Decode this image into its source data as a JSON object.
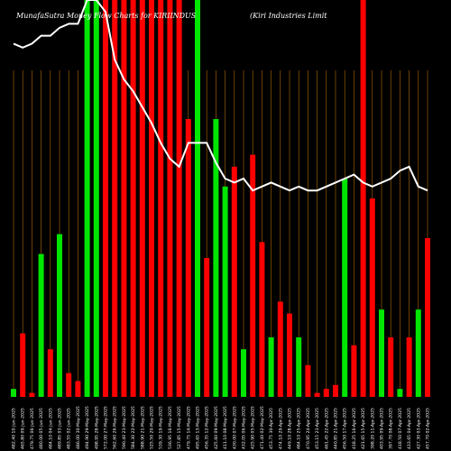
{
  "chart_data": {
    "type": "bar",
    "title_left": "MunafaSutra  Money  Flow  Charts  for  KIRIINDUS",
    "title_right": "(Kiri   Industries Limit",
    "colors": {
      "up": "#00e600",
      "down": "#ff0000",
      "line": "#ffffff",
      "grid": "#b36b00",
      "background": "#000000"
    },
    "ylim_bars": [
      0,
      100
    ],
    "ylim_line": [
      0,
      100
    ],
    "categories": [
      "482.40 10-Jun-2025",
      "465.80 09-Jun-2025",
      "479.75 06-Jun-2025",
      "480.00 05-Jun-2025",
      "484.10 04-Jun-2025",
      "489.85 03-Jun-2025",
      "483.55 02-Jun-2025",
      "486.00 30-May-2025",
      "494.90 29-May-2025",
      "498.95 28-May-2025",
      "572.00 27-May-2025",
      "562.60 26-May-2025",
      "590.40 23-May-2025",
      "584.30 22-May-2025",
      "588.90 21-May-2025",
      "525.50 20-May-2025",
      "539.30 19-May-2025",
      "536.95 16-May-2025",
      "527.85 15-May-2025",
      "479.75 14-May-2025",
      "495.65 13-May-2025",
      "456.35 12-May-2025",
      "425.60 09-May-2025",
      "411.10 08-May-2025",
      "430.00 07-May-2025",
      "432.05 06-May-2025",
      "425.90 05-May-2025",
      "471.40 02-May-2025",
      "453.75 30-Apr-2025",
      "474.10 29-Apr-2025",
      "449.10 28-Apr-2025",
      "484.10 25-Apr-2025",
      "470.95 24-Apr-2025",
      "453.15 23-Apr-2025",
      "461.45 22-Apr-2025",
      "440.85 21-Apr-2025",
      "456.50 17-Apr-2025",
      "418.25 16-Apr-2025",
      "421.65 15-Apr-2025",
      "398.20 11-Apr-2025",
      "403.95 09-Apr-2025",
      "397.70 08-Apr-2025",
      "418.50 07-Apr-2025",
      "433.65 04-Apr-2025",
      "427.30 03-Apr-2025",
      "457.70 02-Apr-2025"
    ],
    "bar_colors": [
      "up",
      "down",
      "down",
      "up",
      "down",
      "up",
      "down",
      "down",
      "up",
      "up",
      "down",
      "down",
      "down",
      "down",
      "down",
      "down",
      "down",
      "down",
      "down",
      "down",
      "up",
      "down",
      "up",
      "up",
      "down",
      "up",
      "down",
      "down",
      "up",
      "down",
      "down",
      "up",
      "down",
      "down",
      "down",
      "down",
      "up",
      "down",
      "down",
      "down",
      "up",
      "down",
      "up",
      "down",
      "up",
      "down"
    ],
    "bar_values": [
      2,
      16,
      1,
      36,
      12,
      41,
      6,
      4,
      100,
      100,
      100,
      100,
      100,
      100,
      100,
      100,
      100,
      100,
      100,
      70,
      100,
      35,
      70,
      53,
      58,
      12,
      61,
      39,
      15,
      24,
      21,
      15,
      8,
      1,
      2,
      3,
      55,
      13,
      100,
      50,
      22,
      15,
      2,
      15,
      22,
      40
    ],
    "line_values": [
      89,
      88,
      89,
      91,
      91,
      93,
      94,
      94,
      100,
      100,
      97,
      85,
      80,
      77,
      73,
      69,
      64,
      60,
      58,
      64,
      64,
      64,
      59,
      55,
      54,
      55,
      52,
      53,
      54,
      53,
      52,
      53,
      52,
      52,
      53,
      54,
      55,
      56,
      54,
      53,
      54,
      55,
      57,
      58,
      53,
      52
    ]
  }
}
